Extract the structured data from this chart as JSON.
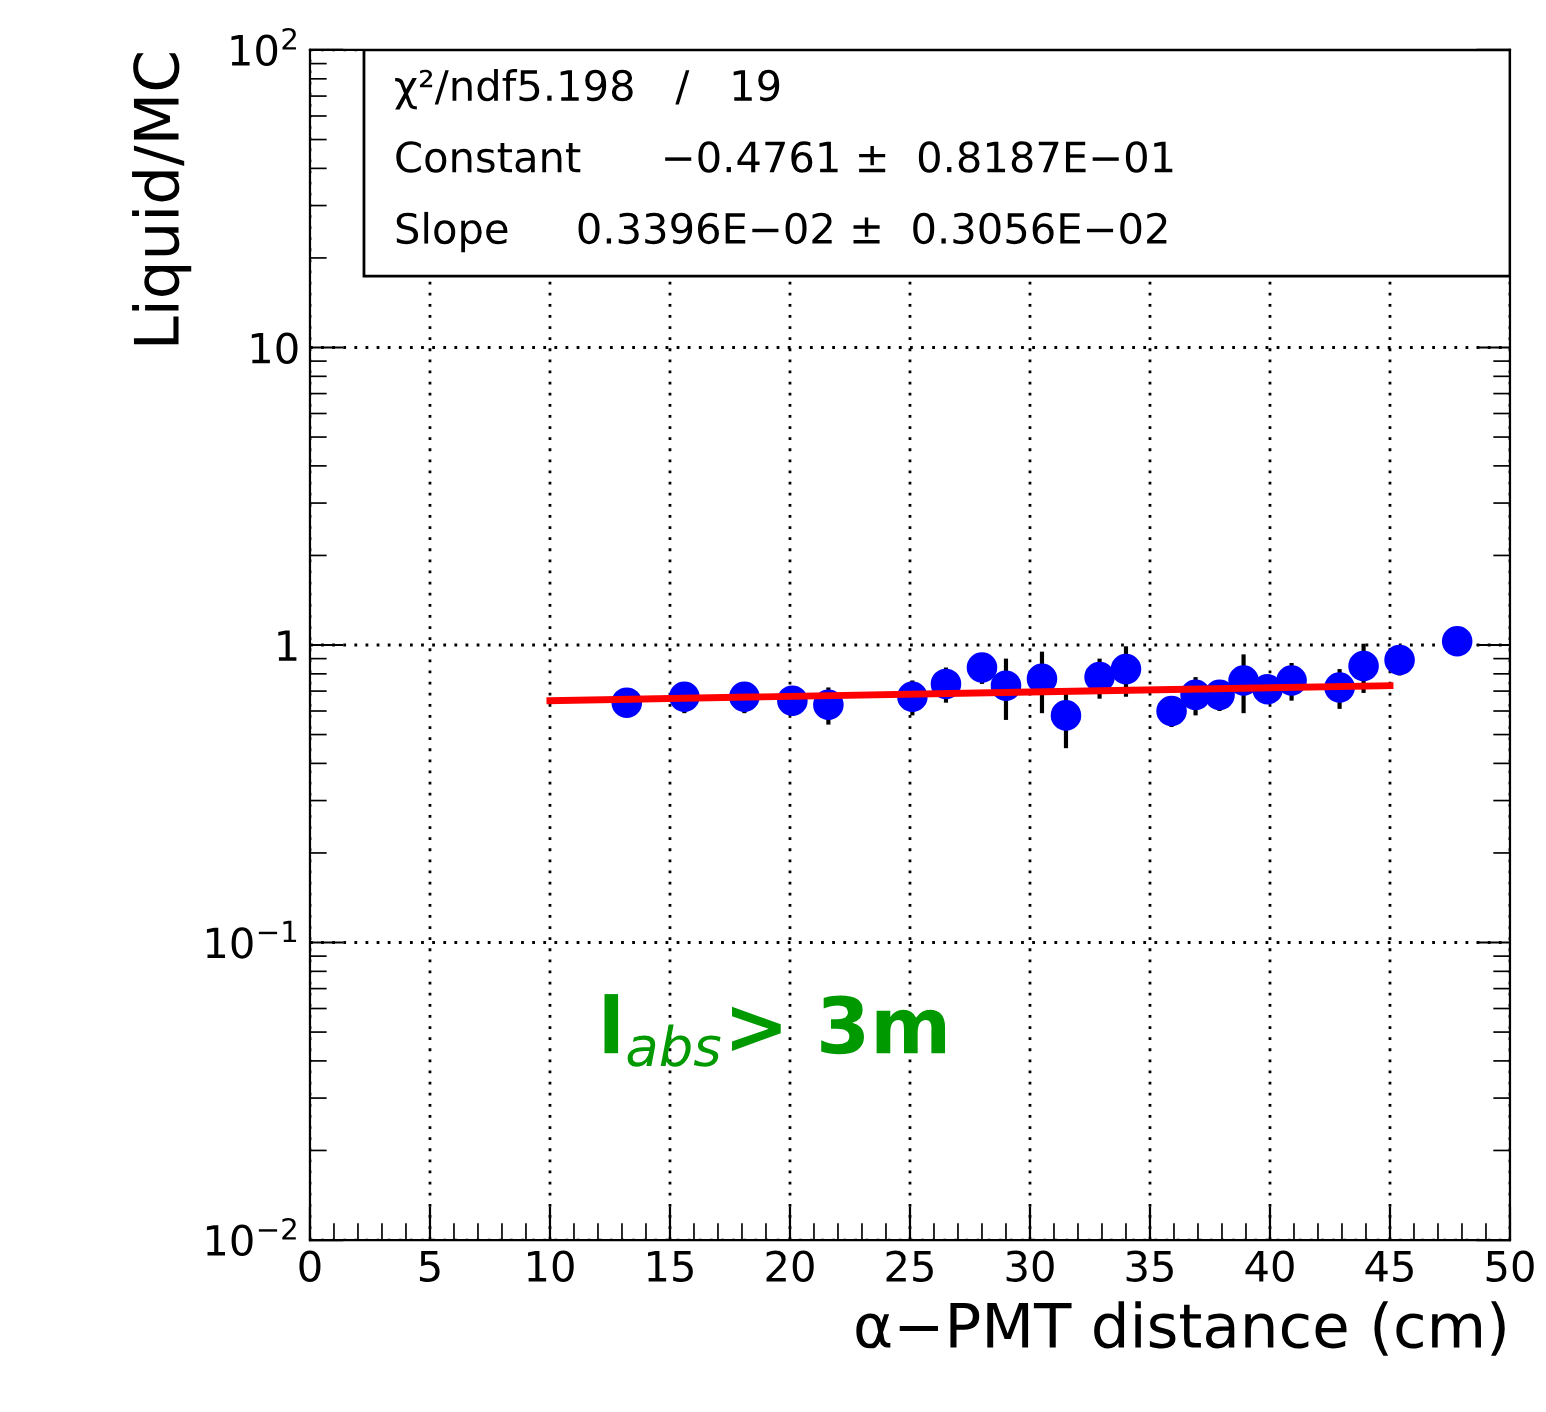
{
  "chart_data": {
    "type": "scatter",
    "xlabel": "α−PMT distance (cm)",
    "ylabel": "Liquid/MC",
    "log": "y",
    "xlim": [
      0,
      50
    ],
    "xticks": [
      0,
      5,
      10,
      15,
      20,
      25,
      30,
      35,
      40,
      45,
      50
    ],
    "ylim": [
      0.01,
      100
    ],
    "yticks": [
      {
        "value": 0.01,
        "label": "10$^{−2}$"
      },
      {
        "value": 0.1,
        "label": "10$^{−1}$"
      },
      1,
      10,
      {
        "value": 100,
        "label": "10$^{2}$"
      }
    ],
    "grid": true,
    "series": [
      {
        "marker": "circle",
        "color": "#0000ff",
        "x": [
          13.2,
          15.6,
          18.1,
          20.1,
          21.6,
          25.1,
          26.5,
          28.0,
          29.0,
          30.5,
          31.5,
          32.9,
          34.0,
          35.9,
          36.9,
          37.9,
          38.9,
          39.9,
          40.9,
          42.9,
          43.9,
          45.4,
          47.8
        ],
        "values": [
          0.64,
          0.67,
          0.67,
          0.65,
          0.63,
          0.67,
          0.74,
          0.84,
          0.73,
          0.77,
          0.58,
          0.78,
          0.83,
          0.6,
          0.68,
          0.68,
          0.76,
          0.71,
          0.76,
          0.72,
          0.85,
          0.89,
          1.03
        ],
        "errors": [
          null,
          0.08,
          0.08,
          0.07,
          0.09,
          0.09,
          0.1,
          0.1,
          0.17,
          0.18,
          0.13,
          0.12,
          0.16,
          0.07,
          0.1,
          0.08,
          0.17,
          0.07,
          0.11,
          0.11,
          0.16,
          0.1,
          null
        ]
      },
      {
        "type": "line",
        "color": "#ff0000",
        "x": [
          10,
          45
        ],
        "values": [
          0.65,
          0.73
        ]
      }
    ],
    "annotations": [
      "χ²/ndf5.198   /   19",
      "Constant      −0.4761 ±  0.8187E−01",
      "Slope     0.3396E−02 ±  0.3056E−02",
      "l$_{abs}$> 3m"
    ]
  }
}
